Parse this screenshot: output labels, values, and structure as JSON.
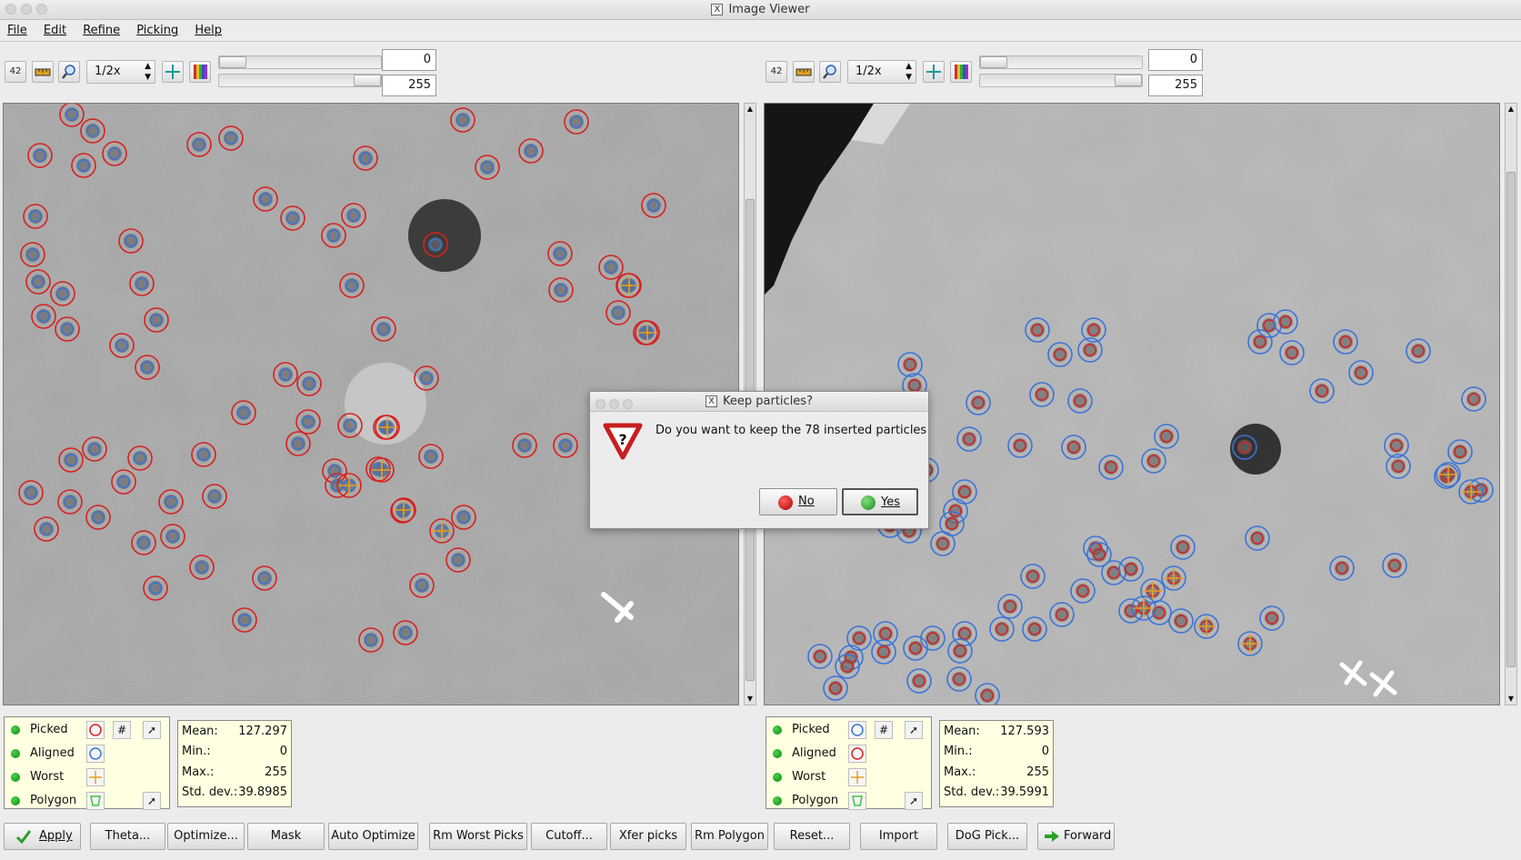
{
  "window": {
    "title": "Image Viewer"
  },
  "menu": [
    "File",
    "Edit",
    "Refine",
    "Picking",
    "Help"
  ],
  "left_toolbar": {
    "label42": "42",
    "zoom": "1/2x",
    "min_value": "0",
    "max_value": "255"
  },
  "right_toolbar": {
    "label42": "42",
    "zoom": "1/2x",
    "min_value": "0",
    "max_value": "255"
  },
  "colors": {
    "picked_red": "#d62020",
    "aligned_blue": "#3a73d8",
    "worst_orange": "#e8a020",
    "polygon_green": "#3cc33c",
    "panel_yellow": "#ffffe1"
  },
  "left_legend": {
    "items": [
      {
        "label": "Picked",
        "symbol": "red-circle-icon"
      },
      {
        "label": "Aligned",
        "symbol": "blue-circle-icon"
      },
      {
        "label": "Worst",
        "symbol": "orange-cross-icon"
      },
      {
        "label": "Polygon",
        "symbol": "green-polygon-icon"
      }
    ],
    "hash": "#"
  },
  "right_legend": {
    "items": [
      {
        "label": "Picked",
        "symbol": "blue-circle-icon"
      },
      {
        "label": "Aligned",
        "symbol": "red-circle-icon"
      },
      {
        "label": "Worst",
        "symbol": "orange-cross-icon"
      },
      {
        "label": "Polygon",
        "symbol": "green-polygon-icon"
      }
    ],
    "hash": "#"
  },
  "left_stats": {
    "mean_label": "Mean:",
    "mean": "127.297",
    "min_label": "Min.:",
    "min": "0",
    "max_label": "Max.:",
    "max": "255",
    "std_label": "Std. dev.:",
    "std": "39.8985"
  },
  "right_stats": {
    "mean_label": "Mean:",
    "mean": "127.593",
    "min_label": "Min.:",
    "min": "0",
    "max_label": "Max.:",
    "max": "255",
    "std_label": "Std. dev.:",
    "std": "39.5991"
  },
  "buttons": [
    "Apply",
    "Theta...",
    "Optimize...",
    "Mask",
    "Auto Optimize",
    "Rm Worst Picks",
    "Cutoff...",
    "Xfer picks",
    "Rm Polygon",
    "Reset...",
    "Import",
    "DoG Pick...",
    "Forward"
  ],
  "dialog": {
    "title": "Keep particles?",
    "message": "Do you want to keep the 78 inserted particles",
    "no_label": "No",
    "yes_label": "Yes"
  }
}
